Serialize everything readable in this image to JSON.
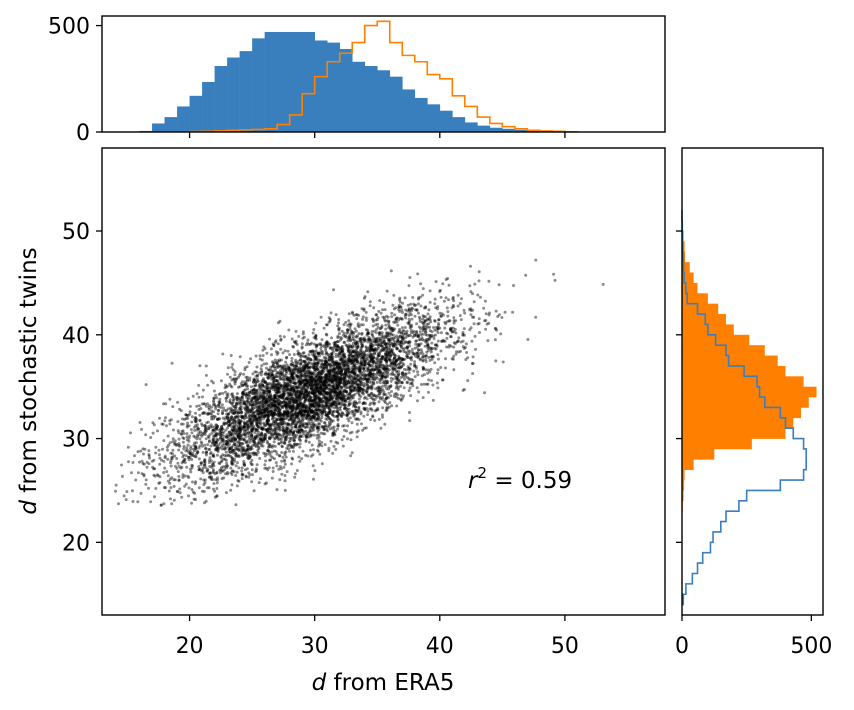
{
  "colors": {
    "blue": "#3a7fbd",
    "orange": "#ff8000",
    "points": "#000000",
    "frame": "#000000"
  },
  "chart_data": {
    "type": "scatter",
    "title": "",
    "xlabel": "<i>d</i> from ERA5",
    "ylabel": "<i>d</i> from stochastic twins",
    "xlim": [
      13,
      58
    ],
    "ylim": [
      13,
      58
    ],
    "xticks": [
      20,
      30,
      40,
      50
    ],
    "yticks": [
      20,
      30,
      40,
      50
    ],
    "annotation": {
      "text_r": "r",
      "text_sup": "2",
      "text_rest": " = 0.59",
      "x": 42,
      "y": 25
    },
    "scatter": {
      "point_count": 6000,
      "r2": 0.59,
      "x_mean": 29.5,
      "x_sd": 5.5,
      "y_mean": 34.3,
      "y_sd": 3.9,
      "x_range": [
        14,
        56
      ],
      "y_range": [
        23.5,
        49
      ],
      "color": "#000000",
      "opacity": 0.45
    },
    "top_histogram": {
      "xlim": [
        13,
        58
      ],
      "ylim": [
        0,
        545
      ],
      "yticks": [
        0,
        500
      ],
      "bin_width": 1,
      "era5_series": {
        "style": "filled",
        "color": "#3a7fbd",
        "bin_starts": [
          14,
          15,
          16,
          17,
          18,
          19,
          20,
          21,
          22,
          23,
          24,
          25,
          26,
          27,
          28,
          29,
          30,
          31,
          32,
          33,
          34,
          35,
          36,
          37,
          38,
          39,
          40,
          41,
          42,
          43,
          44,
          45,
          46,
          47,
          48,
          49,
          50
        ],
        "counts": [
          0,
          2,
          5,
          40,
          70,
          120,
          170,
          235,
          310,
          350,
          380,
          440,
          470,
          470,
          470,
          470,
          430,
          420,
          390,
          330,
          310,
          290,
          260,
          200,
          160,
          130,
          100,
          70,
          45,
          30,
          20,
          15,
          10,
          5,
          3,
          2,
          1
        ]
      },
      "twins_series": {
        "style": "step",
        "color": "#ff8000",
        "bin_starts": [
          20,
          21,
          22,
          23,
          24,
          25,
          26,
          27,
          28,
          29,
          30,
          31,
          32,
          33,
          34,
          35,
          36,
          37,
          38,
          39,
          40,
          41,
          42,
          43,
          44,
          45,
          46,
          47,
          48,
          49,
          50
        ],
        "counts": [
          2,
          3,
          5,
          8,
          10,
          12,
          15,
          35,
          80,
          180,
          260,
          330,
          370,
          420,
          500,
          520,
          420,
          360,
          330,
          270,
          250,
          170,
          120,
          70,
          40,
          25,
          15,
          8,
          5,
          3,
          1
        ]
      }
    },
    "right_histogram": {
      "ylim": [
        13,
        58
      ],
      "xlim": [
        0,
        545
      ],
      "xticks": [
        0,
        500
      ],
      "bin_width": 1,
      "twins_series": {
        "style": "filled",
        "color": "#ff8000",
        "bin_starts": [
          23,
          24,
          25,
          26,
          27,
          28,
          29,
          30,
          31,
          32,
          33,
          34,
          35,
          36,
          37,
          38,
          39,
          40,
          41,
          42,
          43,
          44,
          45,
          46,
          47,
          48,
          49,
          50,
          51,
          52,
          53,
          54,
          55,
          56,
          57
        ],
        "counts": [
          3,
          6,
          8,
          10,
          45,
          125,
          270,
          400,
          430,
          460,
          490,
          520,
          470,
          400,
          370,
          320,
          260,
          200,
          170,
          140,
          100,
          60,
          45,
          30,
          12,
          10,
          6,
          3,
          2,
          2,
          2,
          1,
          1,
          1,
          1
        ]
      },
      "era5_series": {
        "style": "step",
        "color": "#3a7fbd",
        "bin_starts": [
          14,
          15,
          16,
          17,
          18,
          19,
          20,
          21,
          22,
          23,
          24,
          25,
          26,
          27,
          28,
          29,
          30,
          31,
          32,
          33,
          34,
          35,
          36,
          37,
          38,
          39,
          40,
          41,
          42,
          43,
          44,
          45,
          46,
          47,
          48,
          49,
          50,
          51
        ],
        "counts": [
          5,
          15,
          40,
          60,
          80,
          110,
          120,
          150,
          170,
          220,
          250,
          380,
          470,
          480,
          480,
          470,
          430,
          400,
          380,
          320,
          300,
          290,
          240,
          180,
          170,
          130,
          100,
          90,
          60,
          20,
          15,
          8,
          6,
          5,
          3,
          2,
          1,
          0
        ]
      }
    }
  }
}
